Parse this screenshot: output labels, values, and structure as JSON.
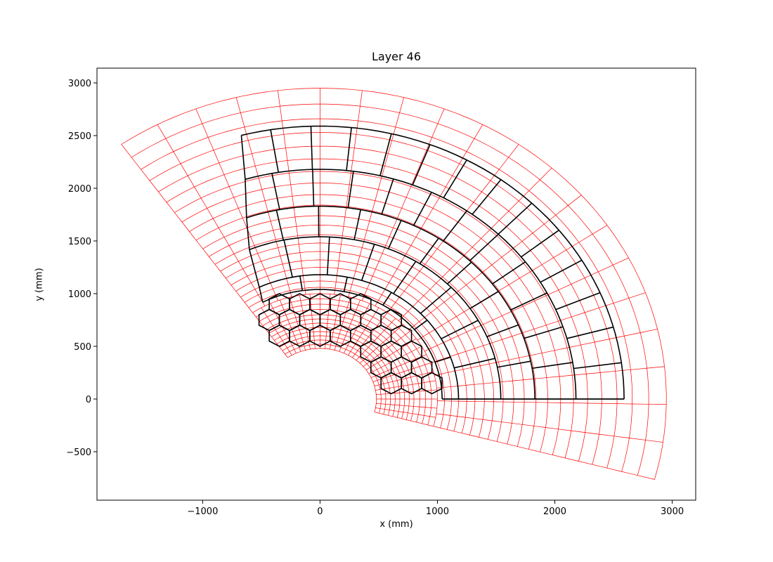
{
  "chart_data": {
    "type": "scatter",
    "title": "Layer 46",
    "xlabel": "x (mm)",
    "ylabel": "y (mm)",
    "xlim": [
      -1900,
      3200
    ],
    "ylim": [
      -960,
      3140
    ],
    "xticks": [
      -1000,
      0,
      1000,
      2000,
      3000
    ],
    "xtick_labels": [
      "−1000",
      "0",
      "1000",
      "2000",
      "3000"
    ],
    "yticks": [
      -500,
      0,
      500,
      1000,
      1500,
      2000,
      2500,
      3000
    ],
    "ytick_labels": [
      "−500",
      "0",
      "500",
      "1000",
      "1500",
      "2000",
      "2500",
      "3000"
    ],
    "grid": false,
    "series": [
      {
        "color": "#ff0000",
        "description_geometry": {
          "rings": [
            480,
            520,
            560,
            600,
            640,
            680,
            720,
            760,
            800,
            850,
            900,
            950,
            1000,
            1060,
            1120,
            1180,
            1250,
            1320,
            1400,
            1480,
            1560,
            1650,
            1740,
            1840,
            1940,
            2050,
            2160,
            2280,
            2400,
            2530,
            2660,
            2800,
            2950
          ],
          "phi_range_deg": [
            -15,
            125
          ],
          "phi_step_deg": {
            "r_lt_1000": 5,
            "r_lt_1800": 7,
            "r_ge_1800": 7
          }
        }
      },
      {
        "color": "#000000",
        "outer_module_rings": [
          1040,
          1180,
          1540,
          1830,
          2180,
          2590
        ],
        "outer_module_phi_deg": [
          0,
          10,
          20,
          30,
          40,
          50,
          60,
          70,
          80,
          90,
          100,
          110,
          120
        ],
        "outer_module_phi_max_deg": [
          118,
          116,
          113,
          110,
          107,
          105
        ],
        "hex_cells_r_range": [
          480,
          1000
        ],
        "hex_cell_size_mm": 100
      }
    ]
  }
}
